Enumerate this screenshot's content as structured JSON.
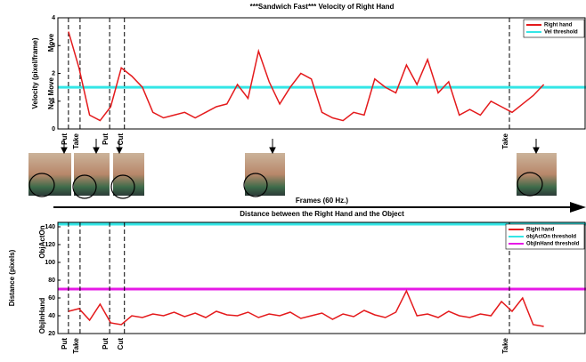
{
  "chart_data": [
    {
      "type": "line",
      "title": "***Sandwich Fast***  Velocity of Right Hand",
      "ylabel": "Velocity (pixel/frame)",
      "xlabel": "Frames (60 Hz.)",
      "annotations": [
        "Move",
        "Not Move"
      ],
      "xlim": [
        0,
        100
      ],
      "ylim": [
        0,
        4
      ],
      "yticks": [
        0,
        1,
        2,
        3,
        4
      ],
      "x": [
        2,
        4,
        6,
        8,
        10,
        12,
        14,
        16,
        18,
        20,
        22,
        24,
        26,
        28,
        30,
        32,
        34,
        36,
        38,
        40,
        42,
        44,
        46,
        48,
        50,
        52,
        54,
        56,
        58,
        60,
        62,
        64,
        66,
        68,
        70,
        72,
        74,
        76,
        78,
        80,
        82,
        84,
        86,
        88,
        90,
        92
      ],
      "series": [
        {
          "name": "Right hand",
          "color": "#e41a1c",
          "values": [
            3.5,
            2.2,
            0.5,
            0.3,
            0.8,
            2.2,
            1.9,
            1.5,
            0.6,
            0.4,
            0.5,
            0.6,
            0.4,
            0.6,
            0.8,
            0.9,
            1.6,
            1.1,
            2.8,
            1.7,
            0.9,
            1.5,
            2.0,
            1.8,
            0.6,
            0.4,
            0.3,
            0.6,
            0.5,
            1.8,
            1.5,
            1.3,
            2.3,
            1.6,
            2.5,
            1.3,
            1.7,
            0.5,
            0.7,
            0.5,
            1.0,
            0.8,
            0.6,
            0.9,
            1.2,
            1.6
          ]
        }
      ],
      "thresholds": [
        {
          "name": "Vel threshold",
          "color": "#33e6e6",
          "value": 1.5
        }
      ],
      "events": [
        {
          "x": 2,
          "label": "Put"
        },
        {
          "x": 4.2,
          "label": "Take"
        },
        {
          "x": 9.8,
          "label": "Put"
        },
        {
          "x": 12.6,
          "label": "Cut"
        },
        {
          "x": 85.5,
          "label": "Take"
        }
      ]
    },
    {
      "type": "line",
      "title": "Distance between the Right Hand and the Object",
      "ylabel": "Distance (pixels)",
      "annotations": [
        "ObjActOn",
        "ObjInHand"
      ],
      "xlim": [
        0,
        100
      ],
      "ylim": [
        20,
        145
      ],
      "yticks": [
        20,
        40,
        60,
        80,
        100,
        120,
        140
      ],
      "x": [
        2,
        4,
        6,
        8,
        10,
        12,
        14,
        16,
        18,
        20,
        22,
        24,
        26,
        28,
        30,
        32,
        34,
        36,
        38,
        40,
        42,
        44,
        46,
        48,
        50,
        52,
        54,
        56,
        58,
        60,
        62,
        64,
        66,
        68,
        70,
        72,
        74,
        76,
        78,
        80,
        82,
        84,
        86,
        88,
        90,
        92
      ],
      "series": [
        {
          "name": "Right hand",
          "color": "#e41a1c",
          "values": [
            45,
            48,
            35,
            53,
            32,
            30,
            40,
            38,
            42,
            40,
            44,
            39,
            43,
            38,
            45,
            41,
            40,
            44,
            38,
            42,
            40,
            44,
            37,
            40,
            43,
            36,
            42,
            39,
            46,
            41,
            38,
            44,
            68,
            40,
            42,
            38,
            45,
            40,
            38,
            42,
            40,
            56,
            45,
            60,
            30,
            28
          ]
        }
      ],
      "thresholds": [
        {
          "name": "objActOn threshold",
          "color": "#33e6e6",
          "value": 143
        },
        {
          "name": "ObjInHand threshold",
          "color": "#e619e6",
          "value": 70
        }
      ],
      "events": [
        {
          "x": 2,
          "label": "Put"
        },
        {
          "x": 4.2,
          "label": "Take"
        },
        {
          "x": 9.8,
          "label": "Put"
        },
        {
          "x": 12.6,
          "label": "Cut"
        },
        {
          "x": 85.5,
          "label": "Take"
        }
      ]
    }
  ]
}
